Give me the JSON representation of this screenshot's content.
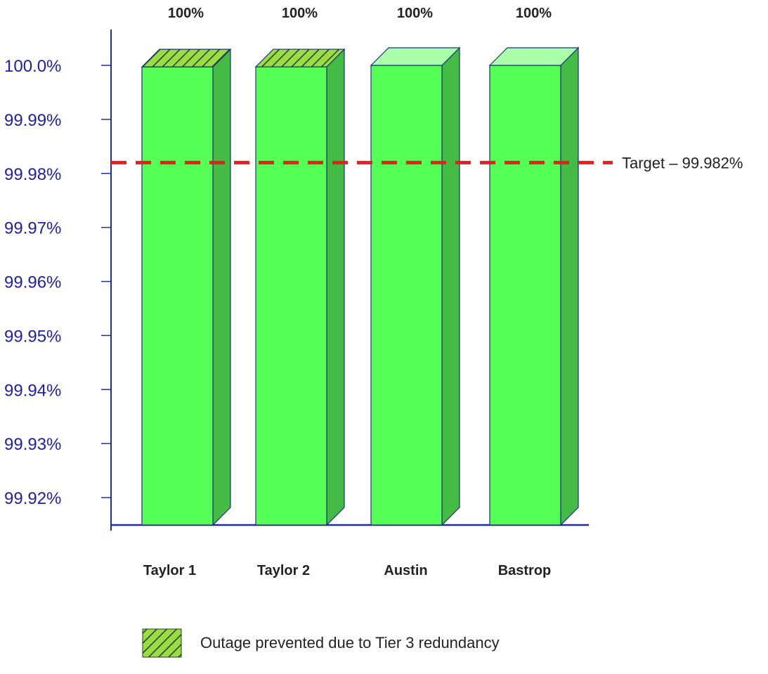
{
  "chart_data": {
    "type": "bar",
    "categories": [
      "Taylor 1",
      "Taylor 2",
      "Austin",
      "Bastrop"
    ],
    "values": [
      99.99998,
      99.99999,
      100.0,
      100.0
    ],
    "data_labels": [
      "100%",
      "100%",
      "100%",
      "100%"
    ],
    "outage_prevented": [
      true,
      true,
      false,
      false
    ],
    "yticks": [
      100.0,
      99.99,
      99.98,
      99.97,
      99.96,
      99.95,
      99.94,
      99.93,
      99.92
    ],
    "ytick_labels": [
      "100.0%",
      "99.99%",
      "99.98%",
      "99.97%",
      "99.96%",
      "99.95%",
      "99.94%",
      "99.93%",
      "99.92%"
    ],
    "ylim": [
      99.915,
      100.0
    ],
    "target": {
      "value": 99.982,
      "label": "Target – 99.982%"
    },
    "legend": {
      "label": "Outage prevented due to Tier 3 redundancy",
      "placement": "bottom"
    },
    "grid": false,
    "title": "",
    "xlabel": "",
    "ylabel": ""
  },
  "colors": {
    "bar_front": "#55ff55",
    "bar_side": "#44bb44",
    "bar_top": "#aaffaa",
    "hatch_fill": "#99dd44",
    "outline": "#1f2f7f",
    "axis": "#1f2f9f",
    "tick_text": "#1f1f9f",
    "target_line": "#e52020",
    "text": "#222222"
  }
}
